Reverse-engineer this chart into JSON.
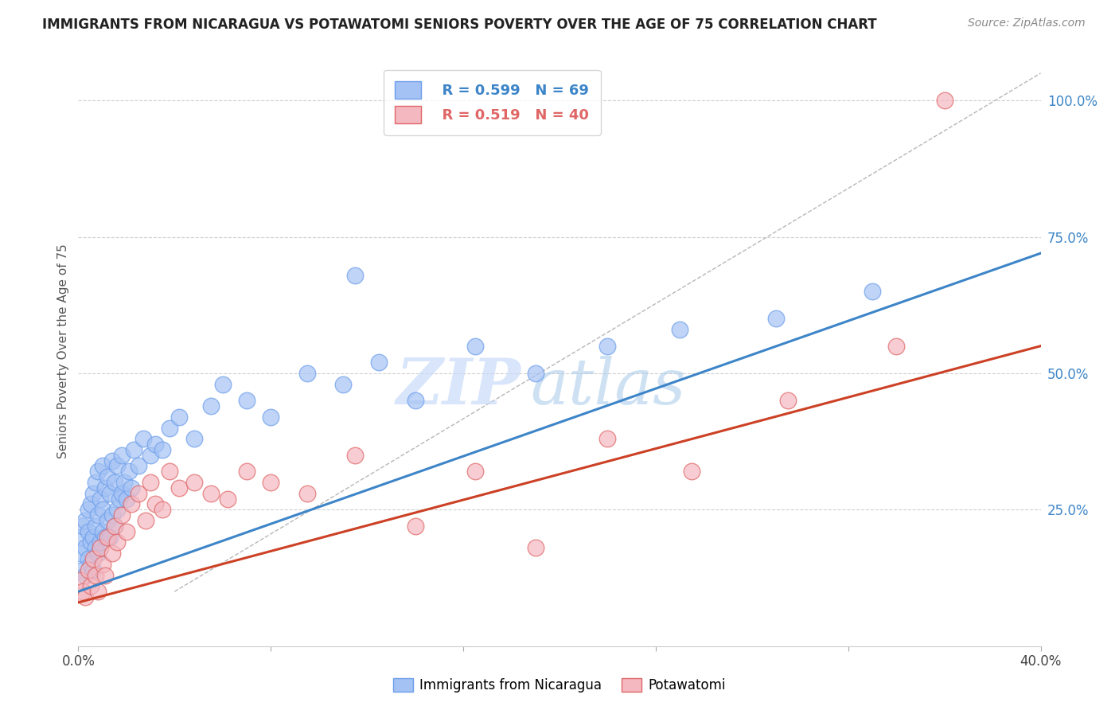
{
  "title": "IMMIGRANTS FROM NICARAGUA VS POTAWATOMI SENIORS POVERTY OVER THE AGE OF 75 CORRELATION CHART",
  "source": "Source: ZipAtlas.com",
  "ylabel": "Seniors Poverty Over the Age of 75",
  "xmin": 0.0,
  "xmax": 0.4,
  "ymin": 0.0,
  "ymax": 1.08,
  "yticks": [
    0.0,
    0.25,
    0.5,
    0.75,
    1.0
  ],
  "ytick_labels": [
    "",
    "25.0%",
    "50.0%",
    "75.0%",
    "100.0%"
  ],
  "xticks": [
    0.0,
    0.08,
    0.16,
    0.24,
    0.32,
    0.4
  ],
  "xtick_labels": [
    "0.0%",
    "",
    "",
    "",
    "",
    "40.0%"
  ],
  "blue_R": 0.599,
  "blue_N": 69,
  "pink_R": 0.519,
  "pink_N": 40,
  "blue_color": "#a4c2f4",
  "pink_color": "#f4b8c1",
  "blue_edge_color": "#6d9eeb",
  "pink_edge_color": "#e06666",
  "blue_line_color": "#3d85c8",
  "pink_line_color": "#cc4125",
  "dashed_line_color": "#b7b7b7",
  "blue_scatter_x": [
    0.001,
    0.001,
    0.002,
    0.002,
    0.003,
    0.003,
    0.003,
    0.004,
    0.004,
    0.004,
    0.005,
    0.005,
    0.005,
    0.006,
    0.006,
    0.006,
    0.007,
    0.007,
    0.007,
    0.008,
    0.008,
    0.008,
    0.009,
    0.009,
    0.01,
    0.01,
    0.01,
    0.011,
    0.011,
    0.012,
    0.012,
    0.013,
    0.013,
    0.014,
    0.014,
    0.015,
    0.015,
    0.016,
    0.016,
    0.017,
    0.018,
    0.018,
    0.019,
    0.02,
    0.021,
    0.022,
    0.023,
    0.025,
    0.027,
    0.03,
    0.032,
    0.035,
    0.038,
    0.042,
    0.048,
    0.055,
    0.06,
    0.07,
    0.08,
    0.095,
    0.11,
    0.125,
    0.14,
    0.165,
    0.19,
    0.22,
    0.25,
    0.29,
    0.33
  ],
  "blue_scatter_y": [
    0.17,
    0.2,
    0.14,
    0.22,
    0.13,
    0.18,
    0.23,
    0.16,
    0.21,
    0.25,
    0.15,
    0.19,
    0.26,
    0.14,
    0.2,
    0.28,
    0.18,
    0.22,
    0.3,
    0.17,
    0.24,
    0.32,
    0.19,
    0.27,
    0.21,
    0.25,
    0.33,
    0.2,
    0.29,
    0.23,
    0.31,
    0.2,
    0.28,
    0.24,
    0.34,
    0.22,
    0.3,
    0.25,
    0.33,
    0.27,
    0.28,
    0.35,
    0.3,
    0.27,
    0.32,
    0.29,
    0.36,
    0.33,
    0.38,
    0.35,
    0.37,
    0.36,
    0.4,
    0.42,
    0.38,
    0.44,
    0.48,
    0.45,
    0.42,
    0.5,
    0.48,
    0.52,
    0.45,
    0.55,
    0.5,
    0.55,
    0.58,
    0.6,
    0.65
  ],
  "blue_outlier_x": [
    0.115
  ],
  "blue_outlier_y": [
    0.68
  ],
  "pink_scatter_x": [
    0.001,
    0.002,
    0.003,
    0.004,
    0.005,
    0.006,
    0.007,
    0.008,
    0.009,
    0.01,
    0.011,
    0.012,
    0.014,
    0.015,
    0.016,
    0.018,
    0.02,
    0.022,
    0.025,
    0.028,
    0.03,
    0.032,
    0.035,
    0.038,
    0.042,
    0.048,
    0.055,
    0.062,
    0.07,
    0.08,
    0.095,
    0.115,
    0.14,
    0.165,
    0.19,
    0.22,
    0.255,
    0.295,
    0.34
  ],
  "pink_scatter_y": [
    0.12,
    0.1,
    0.09,
    0.14,
    0.11,
    0.16,
    0.13,
    0.1,
    0.18,
    0.15,
    0.13,
    0.2,
    0.17,
    0.22,
    0.19,
    0.24,
    0.21,
    0.26,
    0.28,
    0.23,
    0.3,
    0.26,
    0.25,
    0.32,
    0.29,
    0.3,
    0.28,
    0.27,
    0.32,
    0.3,
    0.28,
    0.35,
    0.22,
    0.32,
    0.18,
    0.38,
    0.32,
    0.45,
    0.55
  ],
  "pink_outlier_x": [
    0.36
  ],
  "pink_outlier_y": [
    1.0
  ],
  "blue_trend_x": [
    0.0,
    0.4
  ],
  "blue_trend_y": [
    0.1,
    0.72
  ],
  "pink_trend_x": [
    0.0,
    0.4
  ],
  "pink_trend_y": [
    0.08,
    0.55
  ],
  "dash_trend_x": [
    0.04,
    0.4
  ],
  "dash_trend_y": [
    0.1,
    1.05
  ]
}
